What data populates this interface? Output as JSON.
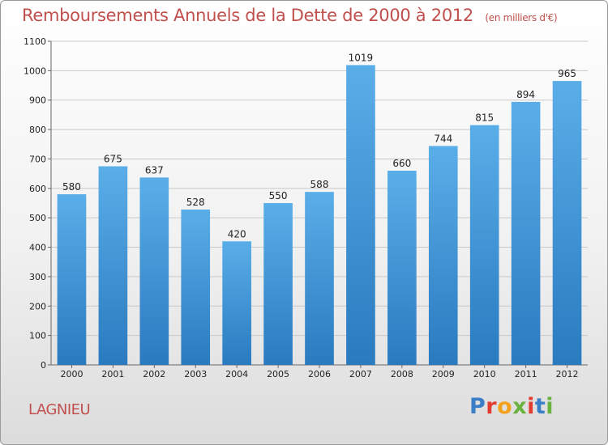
{
  "header": {
    "title": "Remboursements Annuels de la Dette de 2000 à 2012",
    "subtitle": "(en milliers d'€)"
  },
  "footer": {
    "city": "LAGNIEU",
    "brand": "Proxiti",
    "brand_colors": [
      "#3a7ec8",
      "#e23b2f",
      "#f4a21d",
      "#6ab23e",
      "#e23b2f",
      "#3a7ec8",
      "#6ab23e"
    ]
  },
  "colors": {
    "bar_top": "#5aaee8",
    "bar_bottom": "#2a7ac0",
    "grid": "#c8c8c8",
    "title": "#c0504d"
  },
  "chart_data": {
    "type": "bar",
    "title": "Remboursements Annuels de la Dette de 2000 à 2012",
    "subtitle": "(en milliers d'€)",
    "categories": [
      "2000",
      "2001",
      "2002",
      "2003",
      "2004",
      "2005",
      "2006",
      "2007",
      "2008",
      "2009",
      "2010",
      "2011",
      "2012"
    ],
    "values": [
      580,
      675,
      637,
      528,
      420,
      550,
      588,
      1019,
      660,
      744,
      815,
      894,
      965
    ],
    "ylim": [
      0,
      1100
    ],
    "yticks": [
      0,
      100,
      200,
      300,
      400,
      500,
      600,
      700,
      800,
      900,
      1000,
      1100
    ],
    "grid": true,
    "xlabel": "",
    "ylabel": ""
  }
}
